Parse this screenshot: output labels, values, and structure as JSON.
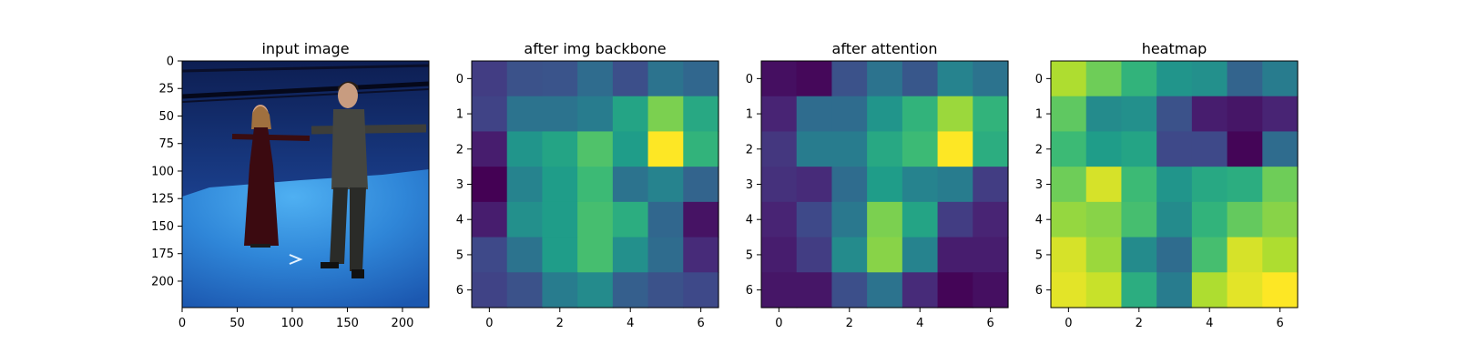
{
  "chart_data": [
    {
      "type": "image",
      "title": "input image",
      "xlim": [
        0,
        224
      ],
      "ylim": [
        224,
        0
      ],
      "xticks": [
        0,
        50,
        100,
        150,
        200
      ],
      "yticks": [
        0,
        25,
        50,
        75,
        100,
        125,
        150,
        175,
        200
      ]
    },
    {
      "type": "heatmap",
      "title": "after img backbone",
      "colormap": "viridis",
      "xticks": [
        0,
        2,
        4,
        6
      ],
      "yticks": [
        0,
        1,
        2,
        3,
        4,
        5,
        6
      ],
      "values": [
        [
          0.18,
          0.25,
          0.26,
          0.35,
          0.24,
          0.38,
          0.33
        ],
        [
          0.2,
          0.38,
          0.38,
          0.42,
          0.58,
          0.8,
          0.6
        ],
        [
          0.08,
          0.52,
          0.58,
          0.72,
          0.55,
          1.0,
          0.65
        ],
        [
          0.0,
          0.45,
          0.55,
          0.68,
          0.38,
          0.45,
          0.32
        ],
        [
          0.08,
          0.5,
          0.55,
          0.7,
          0.62,
          0.33,
          0.05
        ],
        [
          0.22,
          0.38,
          0.55,
          0.7,
          0.5,
          0.35,
          0.12
        ],
        [
          0.2,
          0.25,
          0.42,
          0.48,
          0.3,
          0.25,
          0.22
        ]
      ]
    },
    {
      "type": "heatmap",
      "title": "after attention",
      "colormap": "viridis",
      "xticks": [
        0,
        2,
        4,
        6
      ],
      "yticks": [
        0,
        1,
        2,
        3,
        4,
        5,
        6
      ],
      "values": [
        [
          0.04,
          0.02,
          0.25,
          0.38,
          0.27,
          0.45,
          0.38
        ],
        [
          0.1,
          0.35,
          0.35,
          0.52,
          0.65,
          0.85,
          0.65
        ],
        [
          0.16,
          0.42,
          0.42,
          0.6,
          0.68,
          1.0,
          0.62
        ],
        [
          0.14,
          0.12,
          0.35,
          0.55,
          0.45,
          0.42,
          0.18
        ],
        [
          0.1,
          0.22,
          0.4,
          0.8,
          0.58,
          0.18,
          0.1
        ],
        [
          0.08,
          0.18,
          0.48,
          0.82,
          0.45,
          0.08,
          0.08
        ],
        [
          0.06,
          0.06,
          0.24,
          0.38,
          0.12,
          0.01,
          0.04
        ]
      ]
    },
    {
      "type": "heatmap",
      "title": "heatmap",
      "colormap": "viridis",
      "xticks": [
        0,
        2,
        4,
        6
      ],
      "yticks": [
        0,
        1,
        2,
        3,
        4,
        5,
        6
      ],
      "values": [
        [
          0.88,
          0.78,
          0.65,
          0.52,
          0.5,
          0.32,
          0.42
        ],
        [
          0.75,
          0.48,
          0.5,
          0.25,
          0.08,
          0.06,
          0.1
        ],
        [
          0.68,
          0.55,
          0.58,
          0.22,
          0.22,
          0.01,
          0.35
        ],
        [
          0.78,
          0.94,
          0.68,
          0.52,
          0.6,
          0.62,
          0.78
        ],
        [
          0.84,
          0.82,
          0.7,
          0.48,
          0.65,
          0.76,
          0.82
        ],
        [
          0.94,
          0.85,
          0.48,
          0.35,
          0.7,
          0.94,
          0.88
        ],
        [
          0.96,
          0.92,
          0.62,
          0.42,
          0.88,
          0.96,
          1.0
        ]
      ]
    }
  ]
}
